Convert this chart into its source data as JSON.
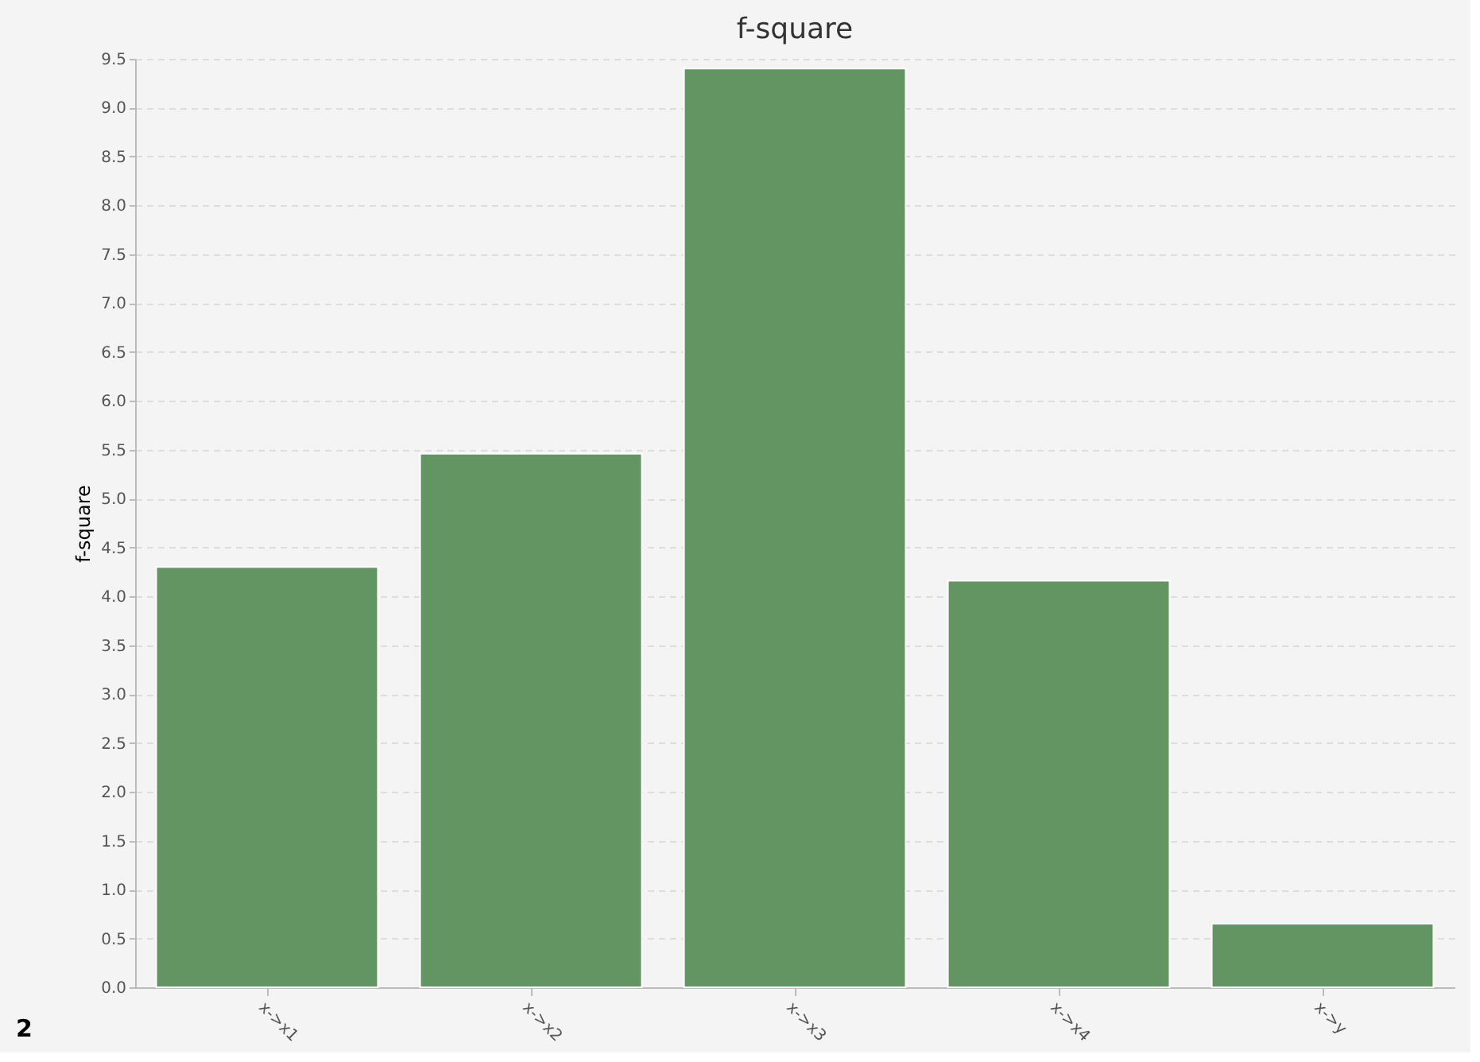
{
  "chart_data": {
    "type": "bar",
    "title": "f-square",
    "ylabel": "f-square",
    "categories": [
      "x->x1",
      "x->x2",
      "x->x3",
      "x->x4",
      "x->y"
    ],
    "values": [
      4.3,
      5.46,
      9.4,
      4.16,
      0.65
    ],
    "color": "#639562",
    "ylim": [
      0,
      9.5
    ],
    "yticks": [
      {
        "value": 0,
        "label": "0.0"
      },
      0.5,
      {
        "value": 1,
        "label": "1.0"
      },
      1.5,
      {
        "value": 2,
        "label": "2.0"
      },
      2.5,
      {
        "value": 3,
        "label": "3.0"
      },
      3.5,
      {
        "value": 4,
        "label": "4.0"
      },
      4.5,
      {
        "value": 5,
        "label": "5.0"
      },
      5.5,
      {
        "value": 6,
        "label": "6.0"
      },
      6.5,
      {
        "value": 7,
        "label": "7.0"
      },
      7.5,
      {
        "value": 8,
        "label": "8.0"
      },
      8.5,
      {
        "value": 9,
        "label": "9.0"
      },
      9.5
    ],
    "grid": "y",
    "annotations": [
      "2"
    ]
  }
}
